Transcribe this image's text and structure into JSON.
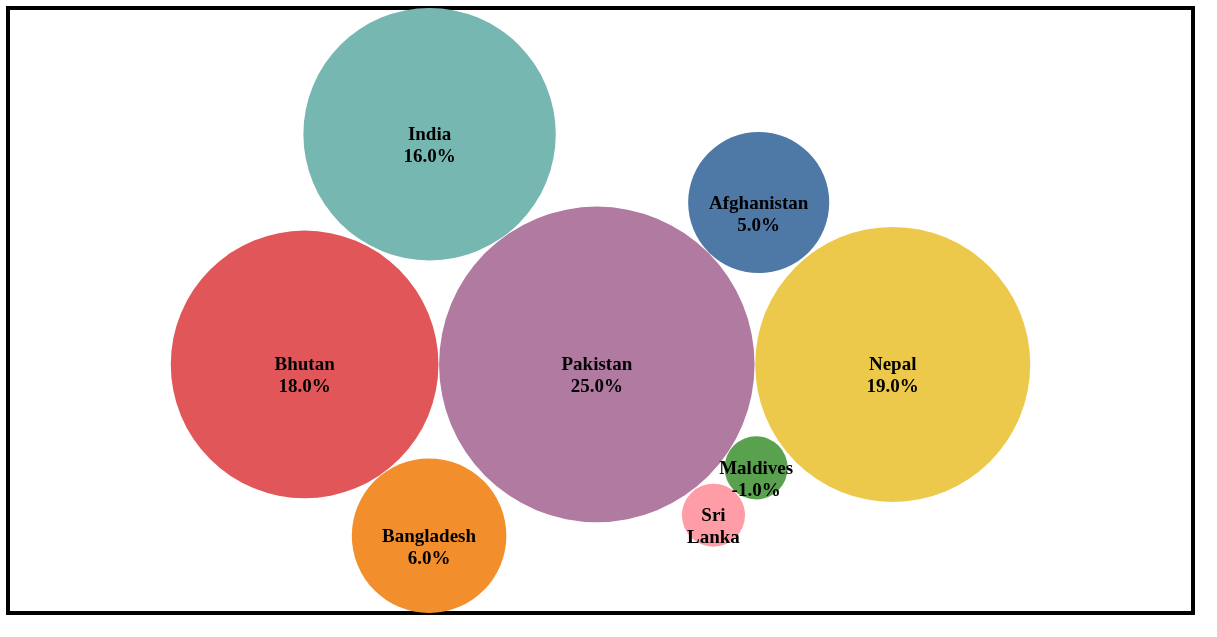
{
  "chart_data": {
    "type": "other",
    "categories": [
      "Nepal",
      "Pakistan",
      "Maldives",
      "Afghanistan",
      "Bangladesh",
      "Sri Lanka",
      "India",
      "Bhutan"
    ],
    "values": [
      19.0,
      25.0,
      -1.0,
      5.0,
      6.0,
      null,
      16.0,
      18.0
    ],
    "value_labels": [
      "19.0%",
      "25.0%",
      "-1.0%",
      "5.0%",
      "6.0%",
      null,
      "16.0%",
      "18.0%"
    ],
    "colors": [
      "#ecc94b",
      "#b07aa1",
      "#59a14f",
      "#4e79a7",
      "#f28e2b",
      "#ff9da7",
      "#76b7b2",
      "#e15759"
    ]
  }
}
